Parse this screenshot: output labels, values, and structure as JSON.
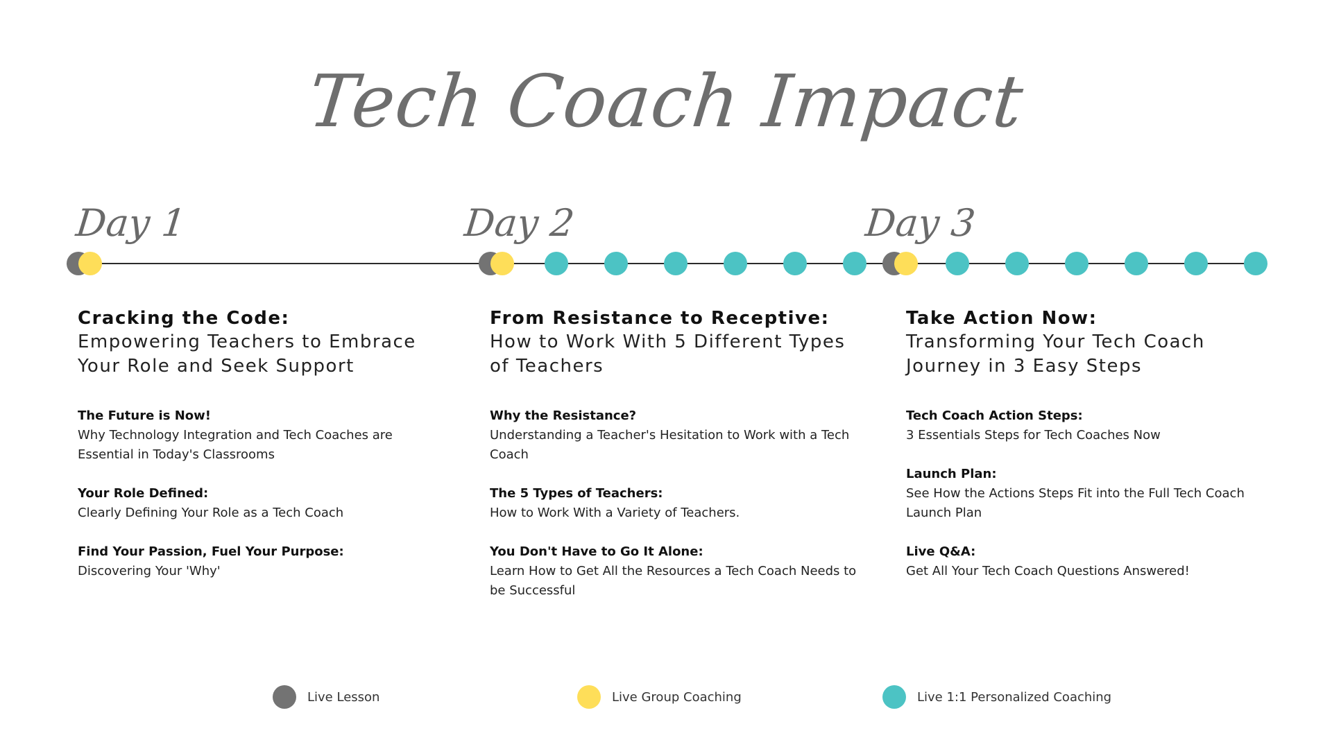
{
  "title": "Tech Coach Impact",
  "days": [
    "Day 1",
    "Day 2",
    "Day 3"
  ],
  "columns": [
    {
      "heading": "Cracking the Code:",
      "subheading": "Empowering Teachers to Embrace Your Role and Seek Support",
      "items": [
        {
          "title": "The Future is Now!",
          "desc": "Why Technology Integration and Tech Coaches are Essential in Today's Classrooms"
        },
        {
          "title": "Your Role Defined:",
          "desc": "Clearly Defining Your Role as a Tech Coach"
        },
        {
          "title": "Find Your Passion, Fuel Your Purpose:",
          "desc": "Discovering Your 'Why'"
        }
      ]
    },
    {
      "heading": "From Resistance to Receptive:",
      "subheading": "How to Work With 5 Different Types of Teachers",
      "items": [
        {
          "title": "Why the Resistance?",
          "desc": "Understanding a Teacher's Hesitation to Work with a Tech Coach"
        },
        {
          "title": "The 5 Types of Teachers:",
          "desc": "How to Work With a Variety of Teachers."
        },
        {
          "title": "You Don't Have to Go It Alone:",
          "desc": "Learn How to Get All the Resources a Tech Coach Needs to be Successful"
        }
      ]
    },
    {
      "heading": "Take Action Now:",
      "subheading": "Transforming Your Tech Coach Journey in 3 Easy Steps",
      "items": [
        {
          "title": "Tech Coach Action Steps:",
          "desc": "3 Essentials Steps for Tech Coaches Now"
        },
        {
          "title": "Launch Plan:",
          "desc": "See How the Actions Steps Fit into the Full Tech Coach Launch Plan"
        },
        {
          "title": "Live Q&A:",
          "desc": "Get All Your Tech Coach Questions Answered!"
        }
      ]
    }
  ],
  "legend": [
    {
      "label": "Live Lesson",
      "color": "#737373"
    },
    {
      "label": "Live Group Coaching",
      "color": "#fede59"
    },
    {
      "label": "Live 1:1 Personalized Coaching",
      "color": "#4cc3c4"
    }
  ]
}
